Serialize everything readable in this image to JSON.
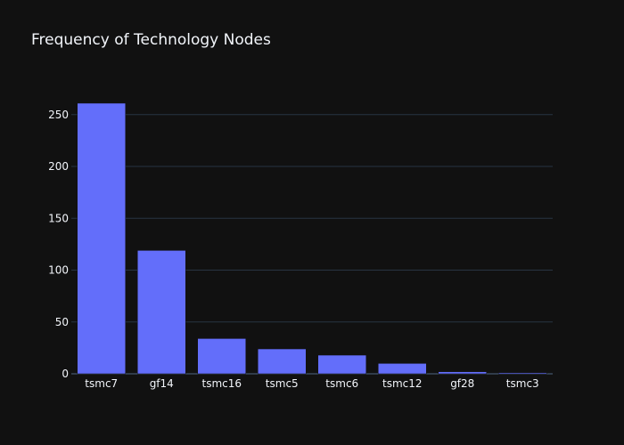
{
  "chart_data": {
    "type": "bar",
    "title": "Frequency of Technology Nodes",
    "xlabel": "",
    "ylabel": "",
    "categories": [
      "tsmc7",
      "gf14",
      "tsmc16",
      "tsmc5",
      "tsmc6",
      "tsmc12",
      "gf28",
      "tsmc3"
    ],
    "values": [
      261,
      119,
      34,
      24,
      18,
      10,
      2,
      1
    ],
    "ylim": [
      0,
      274.7
    ],
    "yticks": [
      0,
      50,
      100,
      150,
      200,
      250
    ],
    "ytick_labels": [
      "0",
      "50",
      "100",
      "150",
      "200",
      "250"
    ],
    "grid": true,
    "legend": "none",
    "colors": {
      "background": "#111111",
      "bar": "#636efa",
      "grid": "#283442",
      "text": "#f2f5fa"
    }
  }
}
